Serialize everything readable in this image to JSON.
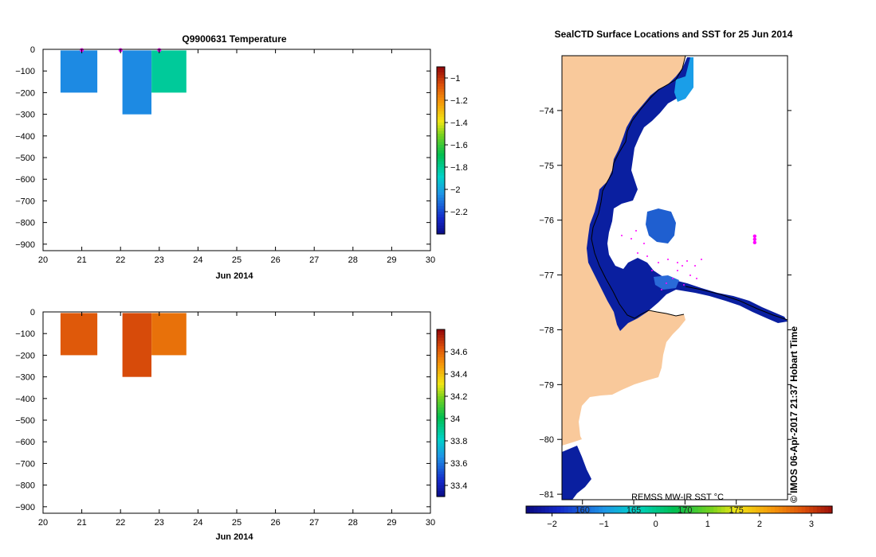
{
  "temperature_panel": {
    "title": "Q9900631  Temperature",
    "xlabel": "Jun 2014",
    "x_ticks": [
      "20",
      "21",
      "22",
      "23",
      "24",
      "25",
      "26",
      "27",
      "28",
      "29",
      "30"
    ],
    "y_ticks": [
      "0",
      "−100",
      "−200",
      "−300",
      "−400",
      "−500",
      "−600",
      "−700",
      "−800",
      "−900"
    ],
    "colorbar_ticks": [
      "−1",
      "−1.2",
      "−1.4",
      "−1.6",
      "−1.8",
      "−2",
      "−2.2"
    ]
  },
  "salinity_panel": {
    "title": "",
    "xlabel": "Jun 2014",
    "x_ticks": [
      "20",
      "21",
      "22",
      "23",
      "24",
      "25",
      "26",
      "27",
      "28",
      "29",
      "30"
    ],
    "y_ticks": [
      "0",
      "−100",
      "−200",
      "−300",
      "−400",
      "−500",
      "−600",
      "−700",
      "−800",
      "−900"
    ],
    "colorbar_ticks": [
      "34.6",
      "34.4",
      "34.2",
      "34",
      "33.8",
      "33.6",
      "33.4"
    ]
  },
  "map_panel": {
    "title": "SealCTD Surface Locations and SST for 25 Jun 2014",
    "lat_ticks": [
      "−74",
      "−75",
      "−76",
      "−77",
      "−78",
      "−79",
      "−80",
      "−81"
    ],
    "lon_ticks": [
      "160",
      "165",
      "170",
      "175"
    ],
    "sst_label": "REMSS MW-IR SST °C",
    "sst_ticks": [
      "−2",
      "−1",
      "0",
      "1",
      "2",
      "3"
    ],
    "credit": "© IMOS 06-Apr-2017 21:37 Hobart Time"
  },
  "chart_data": [
    {
      "type": "heatmap",
      "title": "Q9900631  Temperature",
      "xlabel": "Jun 2014",
      "xlim": [
        20,
        30
      ],
      "ylim": [
        -930,
        0
      ],
      "colorbar_range": [
        -2.4,
        -0.9
      ],
      "profiles": [
        {
          "day_start": 20.45,
          "day_end": 21.4,
          "depth_bottom": -200,
          "value": -2.05
        },
        {
          "day_start": 22.05,
          "day_end": 22.8,
          "depth_bottom": -300,
          "value": -2.05
        },
        {
          "day_start": 22.8,
          "day_end": 23.7,
          "depth_bottom": -200,
          "value": -1.8
        }
      ],
      "surface_markers": [
        21.0,
        22.0,
        23.0
      ]
    },
    {
      "type": "heatmap",
      "title": "",
      "xlabel": "Jun 2014",
      "xlim": [
        20,
        30
      ],
      "ylim": [
        -930,
        0
      ],
      "colorbar_range": [
        33.3,
        34.8
      ],
      "profiles": [
        {
          "day_start": 20.45,
          "day_end": 21.4,
          "depth_bottom": -200,
          "value": 34.63
        },
        {
          "day_start": 22.05,
          "day_end": 22.8,
          "depth_bottom": -300,
          "value": 34.66
        },
        {
          "day_start": 22.8,
          "day_end": 23.7,
          "depth_bottom": -200,
          "value": 34.58
        }
      ]
    },
    {
      "type": "map",
      "title": "SealCTD Surface Locations and SST for 25 Jun 2014",
      "lat_range": [
        -81.1,
        -73.0
      ],
      "lon_range": [
        158.0,
        180.0
      ],
      "sst_range": [
        -2.5,
        3.4
      ],
      "positions": [
        {
          "lon": 176.8,
          "lat": -76.35
        }
      ],
      "colors": {
        "land": "#f9c99b",
        "ocean_cold": "#0a1fa0",
        "marker": "#ff00ff"
      }
    }
  ]
}
